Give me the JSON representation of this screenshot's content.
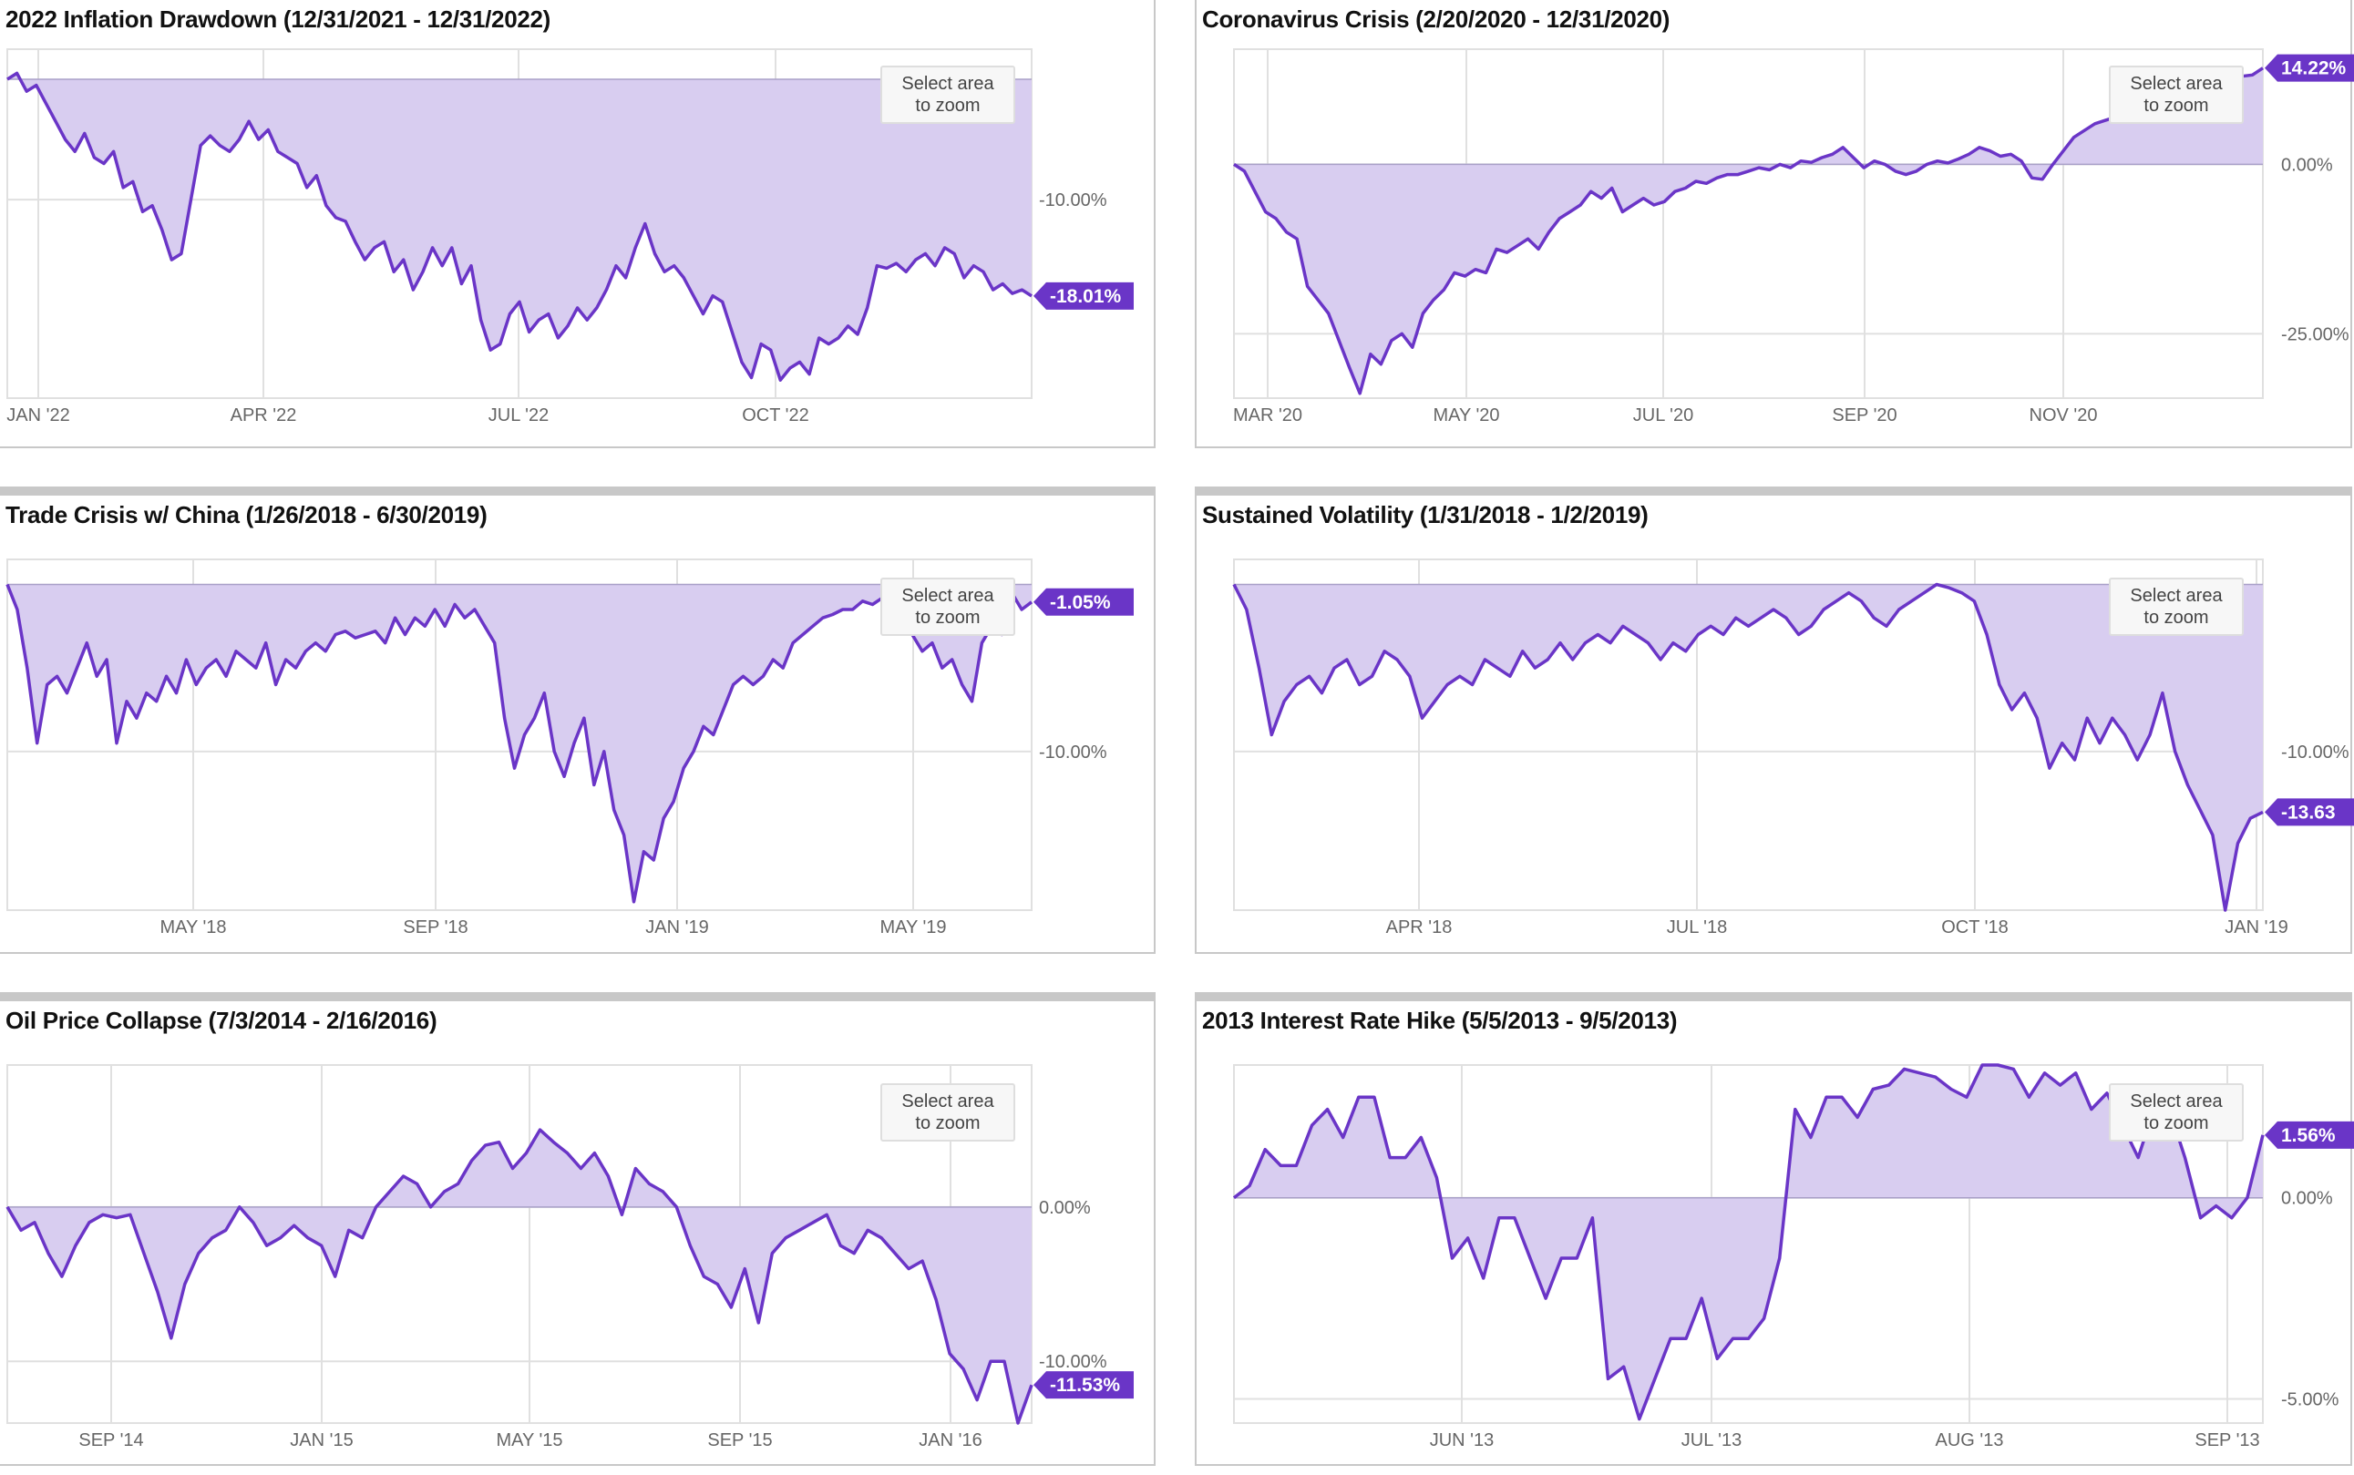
{
  "zoom_button": {
    "line1": "Select area",
    "line2": "to zoom"
  },
  "colors": {
    "line": "#6a35c7",
    "fill": "#d8cdf0",
    "grid": "#e0e0e0",
    "axis_text": "#666666",
    "badge_bg": "#6a35c7",
    "badge_text": "#ffffff"
  },
  "chart_data": [
    {
      "type": "area",
      "title": "2022 Inflation Drawdown (12/31/2021 - 12/31/2022)",
      "x_ticks": [
        "JAN '22",
        "APR '22",
        "JUL '22",
        "OCT '22"
      ],
      "y_ticks": [
        {
          "value": -10,
          "label": "-10.00%"
        }
      ],
      "ylim": [
        -26.5,
        2.5
      ],
      "baseline": 0,
      "end_label": "-18.01%",
      "grid": true,
      "series": [
        {
          "values": [
            0,
            0.5,
            -1,
            -0.5,
            -2,
            -3.5,
            -5,
            -6,
            -4.5,
            -6.5,
            -7,
            -6,
            -9,
            -8.5,
            -11,
            -10.5,
            -12.5,
            -15,
            -14.5,
            -10,
            -5.5,
            -4.7,
            -5.5,
            -6,
            -5,
            -3.5,
            -5,
            -4.2,
            -6,
            -6.5,
            -7,
            -9,
            -8,
            -10.5,
            -11.5,
            -11.8,
            -13.5,
            -15,
            -14,
            -13.5,
            -16,
            -15,
            -17.5,
            -16,
            -14,
            -15.5,
            -14,
            -17,
            -15.5,
            -20,
            -22.5,
            -22,
            -19.5,
            -18.5,
            -21,
            -20,
            -19.5,
            -21.5,
            -20.5,
            -19,
            -20,
            -19,
            -17.5,
            -15.5,
            -16.5,
            -14,
            -12,
            -14.5,
            -16,
            -15.5,
            -16.5,
            -18,
            -19.5,
            -18,
            -18.5,
            -21,
            -23.5,
            -24.8,
            -22,
            -22.5,
            -25,
            -24,
            -23.5,
            -24.5,
            -21.5,
            -22,
            -21.5,
            -20.5,
            -21.2,
            -19,
            -15.5,
            -15.7,
            -15.3,
            -16,
            -15,
            -14.5,
            -15.5,
            -14,
            -14.5,
            -16.5,
            -15.5,
            -16,
            -17.5,
            -17,
            -17.8,
            -17.5,
            -18.01
          ]
        }
      ]
    },
    {
      "type": "area",
      "title": "Coronavirus Crisis (2/20/2020 - 12/31/2020)",
      "x_ticks": [
        "MAR '20",
        "MAY '20",
        "JUL '20",
        "SEP '20",
        "NOV '20"
      ],
      "y_ticks": [
        {
          "value": 0,
          "label": "0.00%"
        },
        {
          "value": -25,
          "label": "-25.00%"
        }
      ],
      "ylim": [
        -34.5,
        17
      ],
      "baseline": 0,
      "end_label": "14.22%",
      "grid": true,
      "series": [
        {
          "values": [
            0,
            -1,
            -4,
            -7,
            -8,
            -10,
            -11,
            -18,
            -20,
            -22,
            -26,
            -30,
            -33.8,
            -28,
            -29.5,
            -26,
            -25,
            -27,
            -22,
            -20,
            -18.5,
            -16,
            -16.5,
            -15.5,
            -16,
            -12.5,
            -13,
            -12,
            -11,
            -12.5,
            -10,
            -8,
            -7,
            -6,
            -4,
            -5,
            -3.5,
            -7,
            -6,
            -5,
            -6,
            -5.5,
            -4,
            -3.5,
            -2.5,
            -2.8,
            -2,
            -1.5,
            -1.5,
            -1,
            -0.5,
            -0.8,
            0,
            -0.5,
            0.5,
            0.3,
            1,
            1.5,
            2.5,
            1,
            -0.5,
            0.5,
            0,
            -1,
            -1.5,
            -1,
            0,
            0.5,
            0.2,
            0.8,
            1.5,
            2.5,
            2,
            1.2,
            1.5,
            0.5,
            -2,
            -2.2,
            0,
            2,
            4,
            5,
            6,
            6.5,
            7,
            7.5,
            8.5,
            9,
            10,
            10.5,
            11,
            10.5,
            11.5,
            12,
            12.5,
            12.8,
            13,
            13.2,
            14.22
          ]
        }
      ]
    },
    {
      "type": "area",
      "title": "Trade Crisis w/ China (1/26/2018 - 6/30/2019)",
      "x_ticks": [
        "MAY '18",
        "SEP '18",
        "JAN '19",
        "MAY '19"
      ],
      "y_ticks": [
        {
          "value": -10,
          "label": "-10.00%"
        }
      ],
      "ylim": [
        -19.5,
        1.5
      ],
      "baseline": 0,
      "end_label": "-1.05%",
      "grid": true,
      "series": [
        {
          "values": [
            0,
            -1.5,
            -5,
            -9.5,
            -6,
            -5.5,
            -6.5,
            -5,
            -3.5,
            -5.5,
            -4.5,
            -9.5,
            -7,
            -8,
            -6.5,
            -7,
            -5.5,
            -6.5,
            -4.5,
            -6,
            -5,
            -4.5,
            -5.5,
            -4,
            -4.5,
            -5,
            -3.5,
            -6,
            -4.5,
            -5,
            -4,
            -3.5,
            -4,
            -3,
            -2.8,
            -3.2,
            -3,
            -2.8,
            -3.5,
            -2,
            -3,
            -2,
            -2.5,
            -1.5,
            -2.5,
            -1.2,
            -2,
            -1.5,
            -2.5,
            -3.5,
            -8,
            -11,
            -9,
            -8,
            -6.5,
            -10,
            -11.5,
            -9.5,
            -8,
            -12,
            -10,
            -13.5,
            -15,
            -19,
            -16,
            -16.5,
            -14,
            -13,
            -11,
            -10,
            -8.5,
            -9,
            -7.5,
            -6,
            -5.5,
            -6,
            -5.5,
            -4.5,
            -5,
            -3.5,
            -3,
            -2.5,
            -2,
            -1.8,
            -1.5,
            -1.5,
            -1,
            -1.2,
            -0.8,
            -1,
            -0.5,
            -3,
            -4,
            -3.5,
            -5,
            -4.5,
            -6,
            -7,
            -3.5,
            -2.5,
            -3,
            -0.5,
            -1.5,
            -1.05
          ]
        }
      ]
    },
    {
      "type": "area",
      "title": "Sustained Volatility (1/31/2018 - 1/2/2019)",
      "x_ticks": [
        "APR '18",
        "JUL '18",
        "OCT '18",
        "JAN '19"
      ],
      "y_ticks": [
        {
          "value": -10,
          "label": "-10.00%"
        }
      ],
      "ylim": [
        -19.5,
        1.5
      ],
      "baseline": 0,
      "end_label": "-13.63",
      "grid": true,
      "series": [
        {
          "values": [
            0,
            -1.5,
            -5,
            -9,
            -7,
            -6,
            -5.5,
            -6.5,
            -5,
            -4.5,
            -6,
            -5.5,
            -4,
            -4.5,
            -5.5,
            -8,
            -7,
            -6,
            -5.5,
            -6,
            -4.5,
            -5,
            -5.5,
            -4,
            -5,
            -4.5,
            -3.5,
            -4.5,
            -3.5,
            -3,
            -3.5,
            -2.5,
            -3,
            -3.5,
            -4.5,
            -3.5,
            -4,
            -3,
            -2.5,
            -3,
            -2,
            -2.5,
            -2,
            -1.5,
            -2,
            -3,
            -2.5,
            -1.5,
            -1,
            -0.5,
            -1,
            -2,
            -2.5,
            -1.5,
            -1,
            -0.5,
            0,
            -0.2,
            -0.5,
            -1,
            -3,
            -6,
            -7.5,
            -6.5,
            -8,
            -11,
            -9.5,
            -10.5,
            -8,
            -9.5,
            -8,
            -9,
            -10.5,
            -9,
            -6.5,
            -10,
            -12,
            -13.5,
            -15,
            -19.5,
            -15.5,
            -14,
            -13.63
          ]
        }
      ]
    },
    {
      "type": "area",
      "title": "Oil Price Collapse (7/3/2014 - 2/16/2016)",
      "x_ticks": [
        "SEP '14",
        "JAN '15",
        "MAY '15",
        "SEP '15",
        "JAN '16"
      ],
      "y_ticks": [
        {
          "value": 0,
          "label": "0.00%"
        },
        {
          "value": -10,
          "label": "-10.00%"
        }
      ],
      "ylim": [
        -14,
        9.2
      ],
      "baseline": 0,
      "end_label": "-11.53%",
      "grid": true,
      "series": [
        {
          "values": [
            0,
            -1.5,
            -1,
            -3,
            -4.5,
            -2.5,
            -1,
            -0.5,
            -0.7,
            -0.5,
            -3,
            -5.5,
            -8.5,
            -5,
            -3,
            -2,
            -1.5,
            0,
            -1,
            -2.5,
            -2,
            -1.2,
            -2,
            -2.5,
            -4.5,
            -1.5,
            -2,
            0,
            1,
            2,
            1.5,
            0,
            1,
            1.5,
            3,
            4,
            4.2,
            2.5,
            3.5,
            5,
            4.2,
            3.5,
            2.5,
            3.5,
            2,
            -0.5,
            2.5,
            1.5,
            1,
            0,
            -2.5,
            -4.5,
            -5,
            -6.5,
            -4,
            -7.5,
            -3,
            -2,
            -1.5,
            -1,
            -0.5,
            -2.5,
            -3,
            -1.5,
            -2,
            -3,
            -4,
            -3.5,
            -6,
            -9.5,
            -10.5,
            -12.5,
            -10,
            -10,
            -14,
            -11.53
          ]
        }
      ]
    },
    {
      "type": "area",
      "title": "2013 Interest Rate Hike (5/5/2013 - 9/5/2013)",
      "x_ticks": [
        "JUN '13",
        "JUL '13",
        "AUG '13",
        "SEP '13"
      ],
      "y_ticks": [
        {
          "value": 0,
          "label": "0.00%"
        },
        {
          "value": -5,
          "label": "-5.00%"
        }
      ],
      "ylim": [
        -5.6,
        3.3
      ],
      "baseline": 0,
      "end_label": "1.56%",
      "grid": true,
      "series": [
        {
          "values": [
            0,
            0.3,
            1.2,
            0.8,
            0.8,
            1.8,
            2.2,
            1.5,
            2.5,
            2.5,
            1,
            1,
            1.5,
            0.5,
            -1.5,
            -1,
            -2,
            -0.5,
            -0.5,
            -1.5,
            -2.5,
            -1.5,
            -1.5,
            -0.5,
            -4.5,
            -4.2,
            -5.5,
            -4.5,
            -3.5,
            -3.5,
            -2.5,
            -4,
            -3.5,
            -3.5,
            -3,
            -1.5,
            2.2,
            1.5,
            2.5,
            2.5,
            2,
            2.7,
            2.8,
            3.2,
            3.1,
            3,
            2.7,
            2.5,
            3.3,
            3.3,
            3.2,
            2.5,
            3.1,
            2.8,
            3.1,
            2.2,
            2.6,
            1.8,
            1,
            2.2,
            2.2,
            1,
            -0.5,
            -0.2,
            -0.5,
            0,
            1.56
          ]
        }
      ]
    }
  ]
}
